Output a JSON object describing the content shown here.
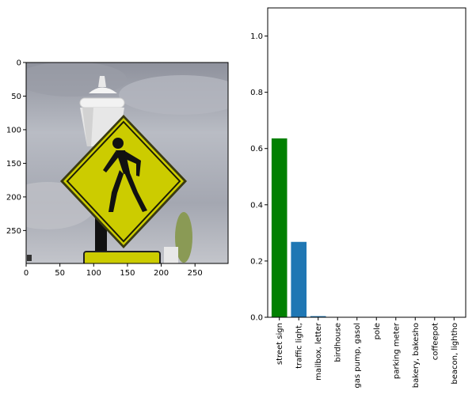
{
  "chart_data": [
    {
      "type": "image",
      "image_subject": "yellow diamond pedestrian crossing street sign in front of a white street lamp, cloudy sky",
      "x_ticks": [
        "0",
        "50",
        "100",
        "150",
        "200",
        "250"
      ],
      "x_tick_values": [
        0,
        50,
        100,
        150,
        200,
        250
      ],
      "y_ticks": [
        "0",
        "50",
        "100",
        "150",
        "200",
        "250"
      ],
      "y_tick_values": [
        0,
        50,
        100,
        150,
        200,
        250
      ],
      "xlim": [
        0,
        299
      ],
      "ylim": [
        299,
        0
      ],
      "colors": {
        "sign": "#cccc00",
        "sky": "#a7aab4",
        "pole": "#111111"
      }
    },
    {
      "type": "bar",
      "categories": [
        "street sign",
        "traffic light,",
        "mailbox, letter",
        "birdhouse",
        "gas pump, gasol",
        "pole",
        "parking meter",
        "bakery, bakesho",
        "coffeepot",
        "beacon, lightho"
      ],
      "values": [
        0.636,
        0.268,
        0.004,
        0.0,
        0.0,
        0.0,
        0.0,
        0.0,
        0.0,
        0.0
      ],
      "bar_colors": [
        "#008000",
        "#1f77b4",
        "#1f77b4",
        "#1f77b4",
        "#1f77b4",
        "#1f77b4",
        "#1f77b4",
        "#1f77b4",
        "#1f77b4",
        "#1f77b4"
      ],
      "ylim": [
        0,
        1.1
      ],
      "y_ticks": [
        "0.0",
        "0.2",
        "0.4",
        "0.6",
        "0.8",
        "1.0"
      ],
      "y_tick_values": [
        0,
        0.2,
        0.4,
        0.6,
        0.8,
        1.0
      ]
    }
  ]
}
